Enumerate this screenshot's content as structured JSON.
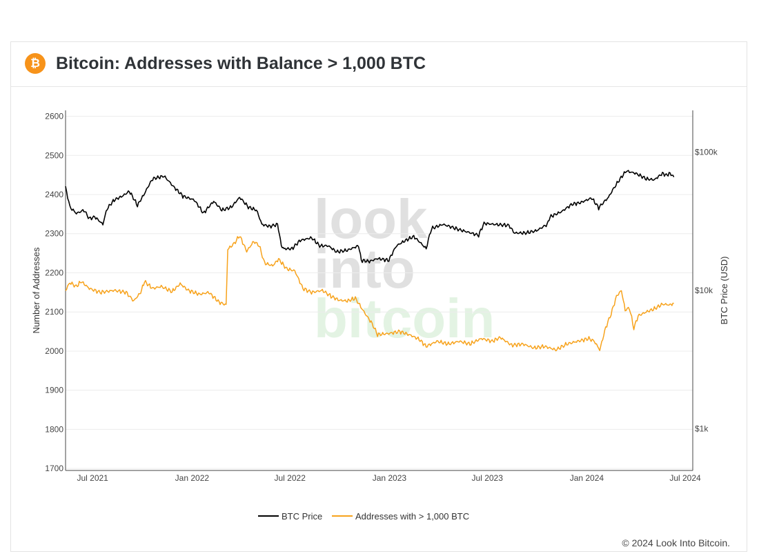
{
  "header": {
    "title": "Bitcoin: Addresses with Balance > 1,000 BTC",
    "logo_glyph": "₿",
    "logo_icon": "bitcoin-logo-icon",
    "logo_color": "#f7931a"
  },
  "footer": {
    "copyright": "© 2024 Look Into Bitcoin."
  },
  "watermark": {
    "lines": [
      "look",
      "into",
      "bitcoin"
    ]
  },
  "chart_data": {
    "type": "line",
    "title": "",
    "x_axis": {
      "type": "date",
      "range": [
        "2021-05-12",
        "2024-07-15"
      ],
      "ticks": [
        {
          "date": "2021-07-01",
          "label": "Jul 2021"
        },
        {
          "date": "2022-01-01",
          "label": "Jan 2022"
        },
        {
          "date": "2022-07-01",
          "label": "Jul 2022"
        },
        {
          "date": "2023-01-01",
          "label": "Jan 2023"
        },
        {
          "date": "2023-07-01",
          "label": "Jul 2023"
        },
        {
          "date": "2024-01-01",
          "label": "Jan 2024"
        },
        {
          "date": "2024-07-01",
          "label": "Jul 2024"
        }
      ]
    },
    "y_axis_left": {
      "label": "Number of Addresses",
      "range": [
        1695,
        2615
      ],
      "ticks": [
        1700,
        1800,
        1900,
        2000,
        2100,
        2200,
        2300,
        2400,
        2500,
        2600
      ]
    },
    "y_axis_right": {
      "label": "BTC Price (USD)",
      "scale": "log",
      "range": [
        500,
        200000
      ],
      "ticks": [
        {
          "value": 1000,
          "label": "$1k"
        },
        {
          "value": 10000,
          "label": "$10k"
        },
        {
          "value": 100000,
          "label": "$100k"
        }
      ]
    },
    "grid": true,
    "legend_position": "bottom-center",
    "series": [
      {
        "name": "BTC Price",
        "axis": "right",
        "color": "#000000",
        "points": [
          [
            "2021-05-12",
            55000
          ],
          [
            "2021-05-20",
            40000
          ],
          [
            "2021-06-01",
            36000
          ],
          [
            "2021-06-15",
            38000
          ],
          [
            "2021-06-25",
            33000
          ],
          [
            "2021-07-05",
            34000
          ],
          [
            "2021-07-20",
            30000
          ],
          [
            "2021-07-28",
            39000
          ],
          [
            "2021-08-10",
            45000
          ],
          [
            "2021-08-25",
            48000
          ],
          [
            "2021-09-07",
            52000
          ],
          [
            "2021-09-22",
            41000
          ],
          [
            "2021-10-05",
            50000
          ],
          [
            "2021-10-20",
            64000
          ],
          [
            "2021-11-10",
            67000
          ],
          [
            "2021-11-28",
            56000
          ],
          [
            "2021-12-15",
            48000
          ],
          [
            "2022-01-05",
            45000
          ],
          [
            "2022-01-22",
            36000
          ],
          [
            "2022-02-10",
            44000
          ],
          [
            "2022-02-25",
            38000
          ],
          [
            "2022-03-15",
            40000
          ],
          [
            "2022-03-30",
            47000
          ],
          [
            "2022-04-15",
            40000
          ],
          [
            "2022-04-30",
            38000
          ],
          [
            "2022-05-10",
            30000
          ],
          [
            "2022-05-25",
            29000
          ],
          [
            "2022-06-08",
            30000
          ],
          [
            "2022-06-15",
            21000
          ],
          [
            "2022-06-20",
            20000
          ],
          [
            "2022-07-05",
            20000
          ],
          [
            "2022-07-20",
            23000
          ],
          [
            "2022-08-10",
            24000
          ],
          [
            "2022-08-25",
            21000
          ],
          [
            "2022-09-10",
            21000
          ],
          [
            "2022-09-25",
            19000
          ],
          [
            "2022-10-15",
            19500
          ],
          [
            "2022-11-05",
            21000
          ],
          [
            "2022-11-10",
            16500
          ],
          [
            "2022-11-25",
            16200
          ],
          [
            "2022-12-10",
            17000
          ],
          [
            "2022-12-31",
            16500
          ],
          [
            "2023-01-14",
            21000
          ],
          [
            "2023-01-31",
            23000
          ],
          [
            "2023-02-15",
            24500
          ],
          [
            "2023-03-10",
            20000
          ],
          [
            "2023-03-20",
            28000
          ],
          [
            "2023-04-10",
            30000
          ],
          [
            "2023-05-10",
            27500
          ],
          [
            "2023-06-15",
            25000
          ],
          [
            "2023-06-25",
            30500
          ],
          [
            "2023-07-15",
            30000
          ],
          [
            "2023-08-10",
            29500
          ],
          [
            "2023-08-20",
            26000
          ],
          [
            "2023-09-10",
            26000
          ],
          [
            "2023-09-30",
            27000
          ],
          [
            "2023-10-20",
            30000
          ],
          [
            "2023-10-25",
            34000
          ],
          [
            "2023-11-15",
            37000
          ],
          [
            "2023-12-05",
            42000
          ],
          [
            "2023-12-20",
            43000
          ],
          [
            "2024-01-10",
            46500
          ],
          [
            "2024-01-23",
            39500
          ],
          [
            "2024-02-10",
            47000
          ],
          [
            "2024-02-28",
            61000
          ],
          [
            "2024-03-14",
            73000
          ],
          [
            "2024-04-01",
            70000
          ],
          [
            "2024-04-20",
            64000
          ],
          [
            "2024-05-05",
            63000
          ],
          [
            "2024-05-20",
            70000
          ],
          [
            "2024-05-27",
            68000
          ],
          [
            "2024-06-03",
            70000
          ],
          [
            "2024-06-10",
            66000
          ]
        ]
      },
      {
        "name": "Addresses with > 1,000 BTC",
        "axis": "left",
        "color": "#f7a21b",
        "points": [
          [
            "2021-05-12",
            2155
          ],
          [
            "2021-05-20",
            2175
          ],
          [
            "2021-06-01",
            2165
          ],
          [
            "2021-06-10",
            2178
          ],
          [
            "2021-06-25",
            2160
          ],
          [
            "2021-07-15",
            2150
          ],
          [
            "2021-08-10",
            2155
          ],
          [
            "2021-09-01",
            2150
          ],
          [
            "2021-09-15",
            2128
          ],
          [
            "2021-09-28",
            2150
          ],
          [
            "2021-10-05",
            2178
          ],
          [
            "2021-10-20",
            2160
          ],
          [
            "2021-11-05",
            2165
          ],
          [
            "2021-11-25",
            2152
          ],
          [
            "2021-12-10",
            2172
          ],
          [
            "2021-12-25",
            2155
          ],
          [
            "2022-01-15",
            2145
          ],
          [
            "2022-02-01",
            2150
          ],
          [
            "2022-02-20",
            2125
          ],
          [
            "2022-03-05",
            2118
          ],
          [
            "2022-03-08",
            2260
          ],
          [
            "2022-03-20",
            2275
          ],
          [
            "2022-03-30",
            2295
          ],
          [
            "2022-04-12",
            2255
          ],
          [
            "2022-04-25",
            2280
          ],
          [
            "2022-05-05",
            2270
          ],
          [
            "2022-05-15",
            2225
          ],
          [
            "2022-05-30",
            2218
          ],
          [
            "2022-06-10",
            2235
          ],
          [
            "2022-06-25",
            2210
          ],
          [
            "2022-07-10",
            2205
          ],
          [
            "2022-07-25",
            2160
          ],
          [
            "2022-08-10",
            2150
          ],
          [
            "2022-08-30",
            2155
          ],
          [
            "2022-09-15",
            2140
          ],
          [
            "2022-09-30",
            2130
          ],
          [
            "2022-10-15",
            2128
          ],
          [
            "2022-10-30",
            2135
          ],
          [
            "2022-11-15",
            2100
          ],
          [
            "2022-11-30",
            2070
          ],
          [
            "2022-12-10",
            2042
          ],
          [
            "2022-12-31",
            2045
          ],
          [
            "2023-01-20",
            2050
          ],
          [
            "2023-02-10",
            2040
          ],
          [
            "2023-02-25",
            2030
          ],
          [
            "2023-03-10",
            2012
          ],
          [
            "2023-03-30",
            2025
          ],
          [
            "2023-04-20",
            2018
          ],
          [
            "2023-05-10",
            2025
          ],
          [
            "2023-05-30",
            2018
          ],
          [
            "2023-06-20",
            2032
          ],
          [
            "2023-07-10",
            2025
          ],
          [
            "2023-07-25",
            2035
          ],
          [
            "2023-08-15",
            2015
          ],
          [
            "2023-09-05",
            2018
          ],
          [
            "2023-09-25",
            2008
          ],
          [
            "2023-10-15",
            2012
          ],
          [
            "2023-11-05",
            2003
          ],
          [
            "2023-11-25",
            2018
          ],
          [
            "2023-12-15",
            2025
          ],
          [
            "2024-01-05",
            2032
          ],
          [
            "2024-01-15",
            2025
          ],
          [
            "2024-01-25",
            2003
          ],
          [
            "2024-02-05",
            2060
          ],
          [
            "2024-02-15",
            2095
          ],
          [
            "2024-02-25",
            2140
          ],
          [
            "2024-03-05",
            2155
          ],
          [
            "2024-03-12",
            2105
          ],
          [
            "2024-03-20",
            2110
          ],
          [
            "2024-03-28",
            2058
          ],
          [
            "2024-04-05",
            2090
          ],
          [
            "2024-04-20",
            2100
          ],
          [
            "2024-05-05",
            2108
          ],
          [
            "2024-05-20",
            2120
          ],
          [
            "2024-06-03",
            2118
          ],
          [
            "2024-06-10",
            2122
          ]
        ]
      }
    ]
  }
}
